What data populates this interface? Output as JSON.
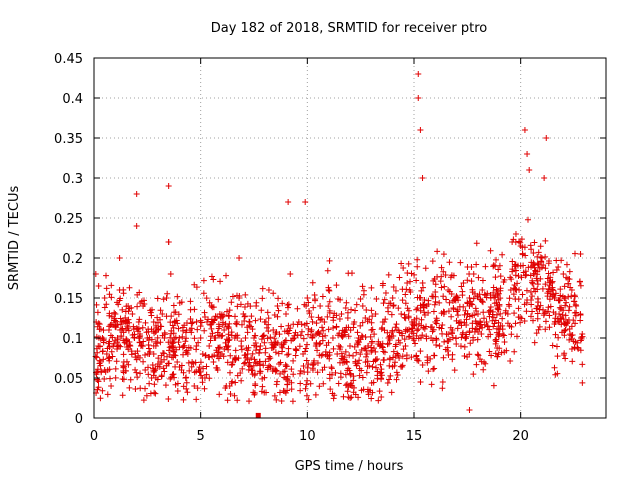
{
  "chart_data": {
    "type": "scatter",
    "title": "Day 182 of 2018, SRMTID for receiver ptro",
    "xlabel": "GPS time / hours",
    "ylabel": "SRMTID / TECUs",
    "xlim": [
      0,
      24
    ],
    "ylim": [
      0,
      0.45
    ],
    "x_ticks": [
      0,
      5,
      10,
      15,
      20
    ],
    "x_tick_labels": [
      "0",
      "5",
      "10",
      "15",
      "20"
    ],
    "y_ticks": [
      0,
      0.05,
      0.1,
      0.15,
      0.2,
      0.25,
      0.3,
      0.35,
      0.4,
      0.45
    ],
    "y_tick_labels": [
      "0",
      "0.05",
      "0.1",
      "0.15",
      "0.2",
      "0.25",
      "0.3",
      "0.35",
      "0.4",
      "0.45"
    ],
    "grid": true,
    "marker": "+",
    "series": [
      {
        "name": "SRMTID",
        "color": "#e00000",
        "x": [
          0.1,
          0.2,
          0.3,
          0.4,
          0.5,
          0.6,
          0.7,
          0.8,
          0.9,
          1.0,
          1.1,
          1.2,
          1.3,
          1.4,
          1.5,
          1.6,
          1.7,
          1.8,
          1.9,
          2.0,
          2.0,
          2.1,
          2.2,
          2.3,
          2.4,
          2.5,
          2.6,
          2.7,
          2.8,
          2.9,
          3.0,
          3.1,
          3.2,
          3.3,
          3.4,
          3.5,
          3.5,
          3.6,
          3.7,
          3.8,
          3.9,
          4.0,
          4.1,
          4.2,
          4.3,
          4.4,
          4.5,
          4.6,
          4.7,
          4.8,
          4.9,
          5.0,
          5.1,
          5.2,
          5.3,
          5.4,
          5.5,
          5.6,
          5.7,
          5.8,
          5.9,
          6.0,
          6.1,
          6.2,
          6.3,
          6.4,
          6.5,
          6.6,
          6.7,
          6.8,
          6.9,
          7.0,
          7.1,
          7.2,
          7.3,
          7.4,
          7.5,
          7.6,
          7.8,
          8.0,
          8.2,
          8.4,
          8.6,
          8.8,
          9.0,
          9.2,
          9.4,
          9.6,
          9.8,
          9.9,
          10.0,
          10.2,
          10.4,
          10.6,
          10.8,
          11.0,
          11.2,
          11.4,
          11.6,
          11.8,
          12.0,
          12.2,
          12.4,
          12.6,
          12.8,
          13.0,
          13.2,
          13.4,
          13.6,
          13.8,
          14.0,
          14.2,
          14.4,
          14.6,
          14.8,
          15.0,
          15.2,
          15.3,
          15.4,
          15.6,
          15.8,
          16.0,
          16.2,
          16.4,
          16.6,
          16.8,
          17.0,
          17.2,
          17.4,
          17.6,
          17.8,
          18.0,
          18.2,
          18.4,
          18.6,
          18.8,
          19.0,
          19.2,
          19.4,
          19.6,
          19.8,
          20.0,
          20.2,
          20.4,
          20.6,
          20.8,
          21.0,
          21.2,
          21.4,
          21.6,
          21.8,
          22.0,
          22.2,
          22.4,
          22.6,
          22.8,
          1.2,
          3.5,
          9.1,
          15.2,
          20.3,
          21.1,
          0.5,
          2.8,
          6.8,
          12.4,
          17.6,
          22.1
        ],
        "y": [
          0.12,
          0.09,
          0.07,
          0.1,
          0.06,
          0.08,
          0.11,
          0.04,
          0.09,
          0.13,
          0.1,
          0.16,
          0.12,
          0.07,
          0.11,
          0.14,
          0.09,
          0.13,
          0.1,
          0.28,
          0.24,
          0.12,
          0.09,
          0.14,
          0.06,
          0.1,
          0.08,
          0.05,
          0.12,
          0.09,
          0.11,
          0.07,
          0.13,
          0.1,
          0.15,
          0.29,
          0.22,
          0.18,
          0.09,
          0.12,
          0.07,
          0.1,
          0.06,
          0.09,
          0.05,
          0.08,
          0.11,
          0.07,
          0.04,
          0.09,
          0.06,
          0.1,
          0.08,
          0.05,
          0.12,
          0.09,
          0.14,
          0.07,
          0.1,
          0.06,
          0.13,
          0.08,
          0.11,
          0.04,
          0.09,
          0.03,
          0.07,
          0.1,
          0.12,
          0.15,
          0.09,
          0.13,
          0.1,
          0.08,
          0.12,
          0.06,
          0.1,
          0.14,
          0.09,
          0.12,
          0.16,
          0.11,
          0.14,
          0.09,
          0.13,
          0.18,
          0.1,
          0.12,
          0.08,
          0.27,
          0.15,
          0.11,
          0.09,
          0.14,
          0.12,
          0.16,
          0.1,
          0.08,
          0.13,
          0.11,
          0.09,
          0.12,
          0.1,
          0.14,
          0.08,
          0.11,
          0.13,
          0.09,
          0.12,
          0.1,
          0.15,
          0.11,
          0.13,
          0.09,
          0.16,
          0.12,
          0.43,
          0.36,
          0.3,
          0.14,
          0.1,
          0.12,
          0.09,
          0.13,
          0.16,
          0.11,
          0.15,
          0.12,
          0.1,
          0.14,
          0.18,
          0.13,
          0.16,
          0.12,
          0.15,
          0.19,
          0.14,
          0.17,
          0.13,
          0.22,
          0.16,
          0.19,
          0.36,
          0.31,
          0.18,
          0.14,
          0.2,
          0.35,
          0.17,
          0.15,
          0.13,
          0.18,
          0.12,
          0.16,
          0.14,
          0.13,
          0.2,
          0.22,
          0.27,
          0.4,
          0.33,
          0.3,
          0.15,
          0.08,
          0.2,
          0.1,
          0.01,
          0.11
        ],
        "y_cloud": [
          0.02,
          0.22
        ],
        "x_cloud": [
          0.05,
          22.9
        ]
      }
    ],
    "special_marker": {
      "x": 7.7,
      "y": 0.002,
      "shape": "square"
    }
  }
}
